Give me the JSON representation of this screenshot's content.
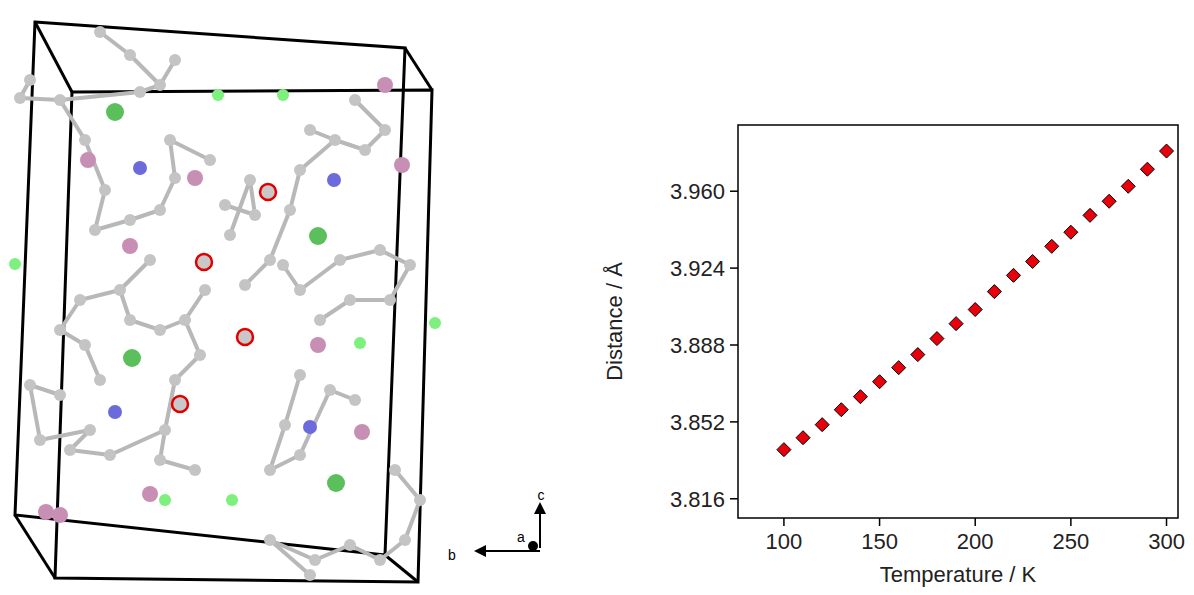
{
  "structure": {
    "axis_labels": [
      "c",
      "b",
      "a"
    ]
  },
  "chart_data": {
    "type": "scatter",
    "x_label": "Temperature / K",
    "y_label": "Distance / Å",
    "x": [
      100,
      110,
      120,
      130,
      140,
      150,
      160,
      170,
      180,
      190,
      200,
      210,
      220,
      230,
      240,
      250,
      260,
      270,
      280,
      290,
      300
    ],
    "values": [
      3.839,
      3.8446,
      3.8507,
      3.8577,
      3.8638,
      3.8708,
      3.8774,
      3.8835,
      3.891,
      3.898,
      3.9046,
      3.913,
      3.9206,
      3.9271,
      3.9342,
      3.9408,
      3.9487,
      3.9553,
      3.9623,
      3.9703,
      3.9788
    ],
    "color": "#e8000b",
    "marker": "diamond",
    "xlim": [
      76,
      306
    ],
    "ylim": [
      3.807,
      3.991
    ],
    "xticks": [
      100,
      150,
      200,
      250,
      300
    ],
    "yticks": [
      3.816,
      3.852,
      3.888,
      3.924,
      {
        "value": 3.96,
        "label": "3.960"
      }
    ],
    "grid": false
  }
}
